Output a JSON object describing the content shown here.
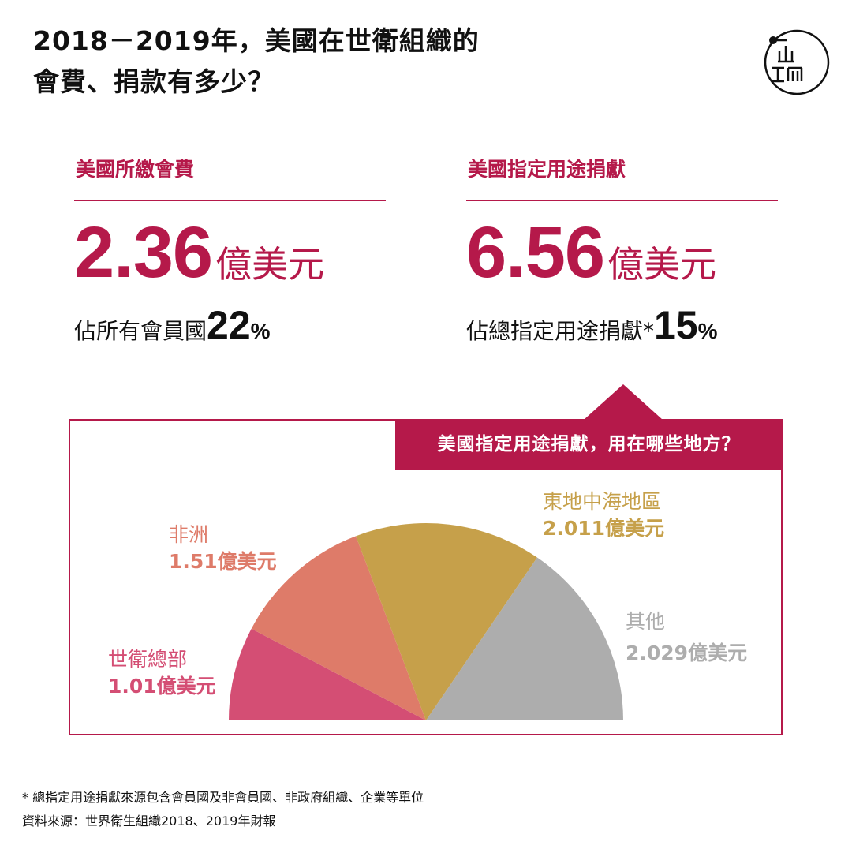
{
  "header": {
    "title_line1": "2018－2019年，美國在世衛組織的",
    "title_line2": "會費、捐款有多少？"
  },
  "left_stat": {
    "heading": "美國所繳會費",
    "value": "2.36",
    "unit": "億美元",
    "sub_text": "佔所有會員國",
    "sub_pct": "22",
    "sub_pct_sign": "%"
  },
  "right_stat": {
    "heading": "美國指定用途捐獻",
    "value": "6.56",
    "unit": "億美元",
    "sub_text": "佔總指定用途捐獻*",
    "sub_pct": "15",
    "sub_pct_sign": "%"
  },
  "panel": {
    "banner": "美國指定用途捐獻，用在哪些地方？"
  },
  "chart_data": {
    "type": "pie",
    "shape": "semicircle",
    "unit": "億美元",
    "slices": [
      {
        "label": "世衛總部",
        "value": 1.01,
        "value_text": "1.01億美元",
        "color": "#d44e74"
      },
      {
        "label": "非洲",
        "value": 1.51,
        "value_text": "1.51億美元",
        "color": "#de7b69"
      },
      {
        "label": "東地中海地區",
        "value": 2.011,
        "value_text": "2.011億美元",
        "color": "#c6a04a"
      },
      {
        "label": "其他",
        "value": 2.029,
        "value_text": "2.029億美元",
        "color": "#adadad"
      }
    ]
  },
  "footnotes": {
    "note": "* 總指定用途捐獻來源包含會員國及非會員國、非政府組織、企業等單位",
    "source": "資料來源：世界衛生組織2018、2019年財報"
  },
  "colors": {
    "accent": "#b5194a"
  }
}
